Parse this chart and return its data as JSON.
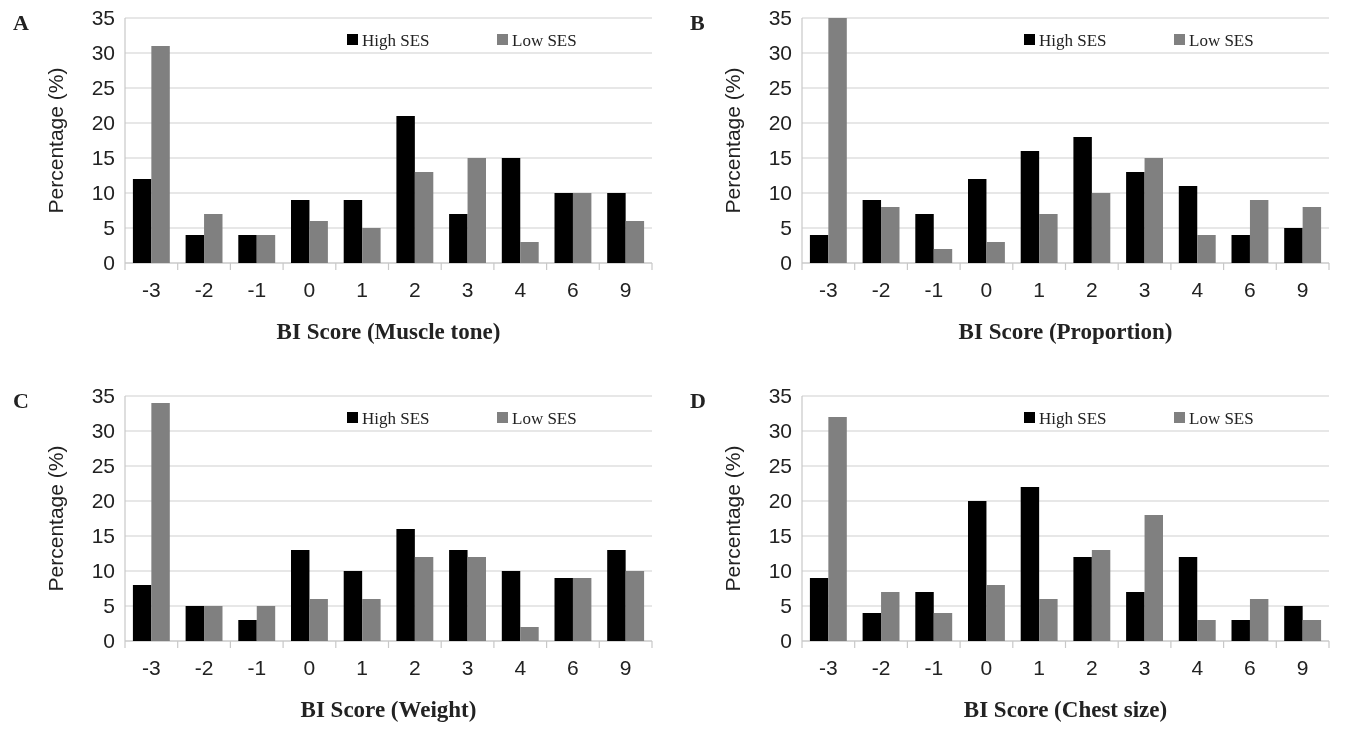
{
  "chart_data": [
    {
      "type": "bar",
      "title": "A",
      "xlabel": "BI Score (Muscle tone)",
      "ylabel": "Percentage (%)",
      "categories": [
        "-3",
        "-2",
        "-1",
        "0",
        "1",
        "2",
        "3",
        "4",
        "6",
        "9"
      ],
      "series": [
        {
          "name": "High SES",
          "color": "#000000",
          "values": [
            12,
            4,
            4,
            9,
            9,
            21,
            7,
            15,
            10,
            10
          ]
        },
        {
          "name": "Low SES",
          "color": "#808080",
          "values": [
            31,
            7,
            4,
            6,
            5,
            13,
            15,
            3,
            10,
            6
          ]
        }
      ],
      "ylim": [
        0,
        35
      ],
      "yticks": [
        0,
        5,
        10,
        15,
        20,
        25,
        30,
        35
      ],
      "grid": "y",
      "legend": "top right"
    },
    {
      "type": "bar",
      "title": "B",
      "xlabel": "BI Score (Proportion)",
      "ylabel": "Percentage (%)",
      "categories": [
        "-3",
        "-2",
        "-1",
        "0",
        "1",
        "2",
        "3",
        "4",
        "6",
        "9"
      ],
      "series": [
        {
          "name": "High SES",
          "color": "#000000",
          "values": [
            4,
            9,
            7,
            12,
            16,
            18,
            13,
            11,
            4,
            5
          ]
        },
        {
          "name": "Low SES",
          "color": "#808080",
          "values": [
            35,
            8,
            2,
            3,
            7,
            10,
            15,
            4,
            9,
            8
          ]
        }
      ],
      "ylim": [
        0,
        35
      ],
      "yticks": [
        0,
        5,
        10,
        15,
        20,
        25,
        30,
        35
      ],
      "grid": "y",
      "legend": "top right"
    },
    {
      "type": "bar",
      "title": "C",
      "xlabel": "BI Score (Weight)",
      "ylabel": "Percentage (%)",
      "categories": [
        "-3",
        "-2",
        "-1",
        "0",
        "1",
        "2",
        "3",
        "4",
        "6",
        "9"
      ],
      "series": [
        {
          "name": "High SES",
          "color": "#000000",
          "values": [
            8,
            5,
            3,
            13,
            10,
            16,
            13,
            10,
            9,
            13
          ]
        },
        {
          "name": "Low SES",
          "color": "#808080",
          "values": [
            34,
            5,
            5,
            6,
            6,
            12,
            12,
            2,
            9,
            10
          ]
        }
      ],
      "ylim": [
        0,
        35
      ],
      "yticks": [
        0,
        5,
        10,
        15,
        20,
        25,
        30,
        35
      ],
      "grid": "y",
      "legend": "top right"
    },
    {
      "type": "bar",
      "title": "D",
      "xlabel": "BI Score (Chest size)",
      "ylabel": "Percentage (%)",
      "categories": [
        "-3",
        "-2",
        "-1",
        "0",
        "1",
        "2",
        "3",
        "4",
        "6",
        "9"
      ],
      "series": [
        {
          "name": "High SES",
          "color": "#000000",
          "values": [
            9,
            4,
            7,
            20,
            22,
            12,
            7,
            12,
            3,
            5
          ]
        },
        {
          "name": "Low SES",
          "color": "#808080",
          "values": [
            32,
            7,
            4,
            8,
            6,
            13,
            18,
            3,
            6,
            3
          ]
        }
      ],
      "ylim": [
        0,
        35
      ],
      "yticks": [
        0,
        5,
        10,
        15,
        20,
        25,
        30,
        35
      ],
      "grid": "y",
      "legend": "top right"
    }
  ]
}
